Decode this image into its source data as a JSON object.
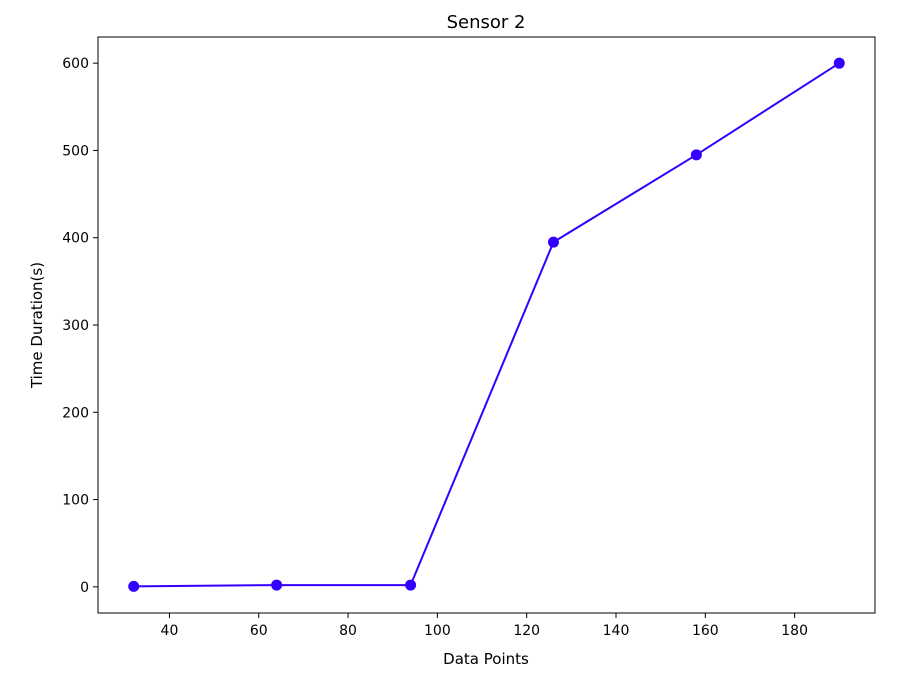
{
  "chart_data": {
    "type": "line",
    "title": "Sensor 2",
    "xlabel": "Data Points",
    "ylabel": "Time Duration(s)",
    "xlim": [
      24,
      198
    ],
    "ylim": [
      -30,
      630
    ],
    "xticks": [
      40,
      60,
      80,
      100,
      120,
      140,
      160,
      180
    ],
    "yticks": [
      0,
      100,
      200,
      300,
      400,
      500,
      600
    ],
    "grid": false,
    "series": [
      {
        "x": [
          32,
          64,
          94,
          126,
          158,
          190
        ],
        "y": [
          0.5,
          2,
          2,
          395,
          495,
          600
        ],
        "color": "#3300ff",
        "marker": "circle"
      }
    ]
  }
}
